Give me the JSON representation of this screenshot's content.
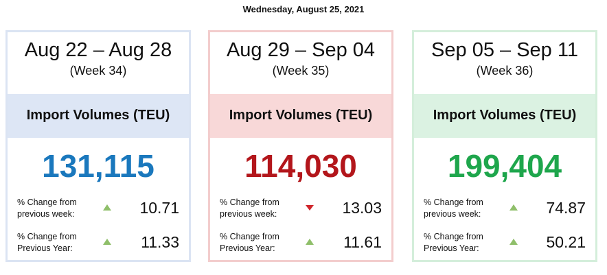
{
  "header": {
    "date": "Wednesday, August 25, 2021"
  },
  "cards": [
    {
      "range": "Aug 22 – Aug 28",
      "week": "(Week 34)",
      "metric": "Import Volumes (TEU)",
      "value": "131,115",
      "color": "#1a78bd",
      "border": "#dbe4f3",
      "band": "#dde6f5",
      "rows": [
        {
          "label": "% Change from previous week:",
          "direction": "up",
          "value": "10.71"
        },
        {
          "label": "% Change from Previous Year:",
          "direction": "up",
          "value": "11.33"
        }
      ]
    },
    {
      "range": "Aug 29 – Sep 04",
      "week": "(Week 35)",
      "metric": "Import Volumes (TEU)",
      "value": "114,030",
      "color": "#b3161b",
      "border": "#f3cdcd",
      "band": "#f8d8d8",
      "rows": [
        {
          "label": "% Change from previous week:",
          "direction": "down",
          "value": "13.03"
        },
        {
          "label": "% Change from Previous Year:",
          "direction": "up",
          "value": "11.61"
        }
      ]
    },
    {
      "range": "Sep 05 – Sep 11",
      "week": "(Week 36)",
      "metric": "Import Volumes (TEU)",
      "value": "199,404",
      "color": "#1ea64c",
      "border": "#d4eedb",
      "band": "#dbf2e2",
      "rows": [
        {
          "label": "% Change from previous week:",
          "direction": "up",
          "value": "74.87"
        },
        {
          "label": "% Change from Previous Year:",
          "direction": "up",
          "value": "50.21"
        }
      ]
    }
  ]
}
